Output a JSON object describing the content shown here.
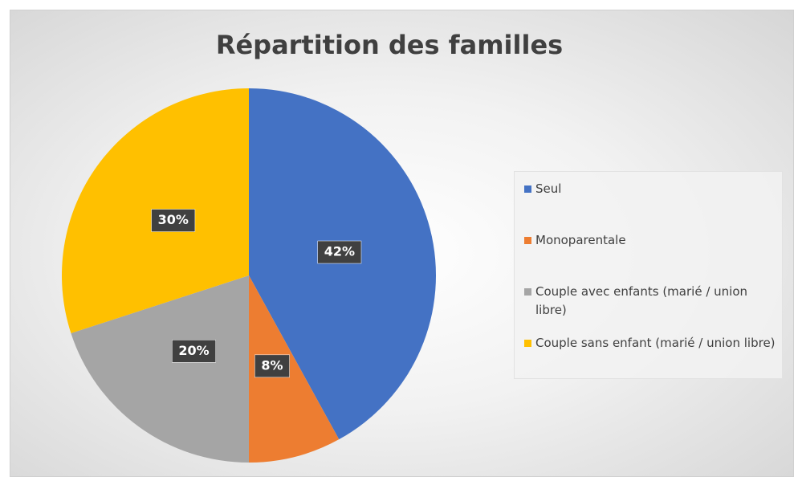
{
  "chart_data": {
    "type": "pie",
    "title": "Répartition des familles",
    "categories": [
      "Seul",
      "Monoparentale",
      "Couple avec enfants (marié / union libre)",
      "Couple sans enfant (marié / union libre)"
    ],
    "values": [
      42,
      8,
      20,
      30
    ],
    "value_labels": [
      "42%",
      "8%",
      "20%",
      "30%"
    ],
    "colors": [
      "#4472c4",
      "#ed7d31",
      "#a5a5a5",
      "#ffc000"
    ],
    "legend": "right"
  }
}
